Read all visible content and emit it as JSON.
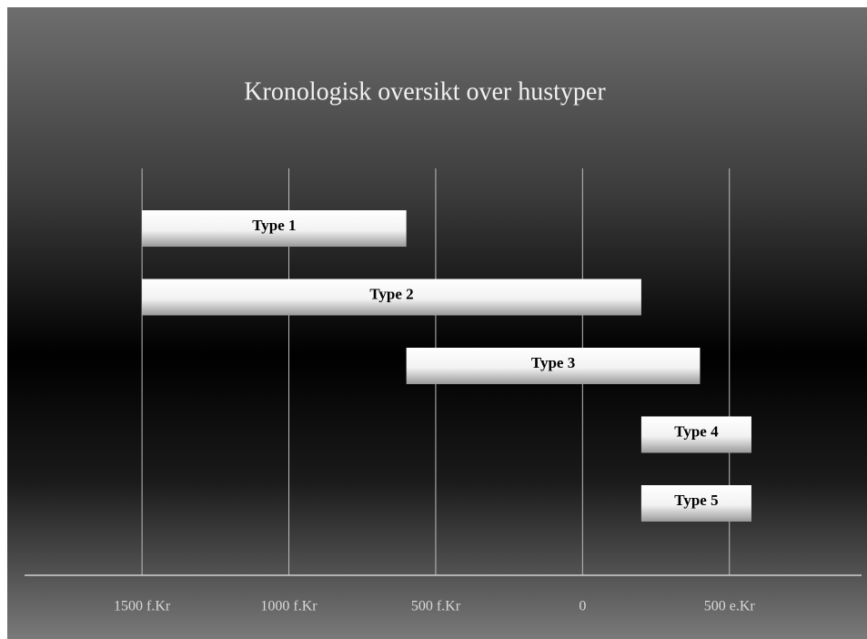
{
  "chart_data": {
    "type": "range_bar",
    "title": "Kronologisk oversikt over hustyper",
    "categories": [
      "Type 1",
      "Type 2",
      "Type 3",
      "Type 4",
      "Type 5"
    ],
    "start": [
      -1500,
      -1500,
      -600,
      200,
      200
    ],
    "end": [
      -600,
      200,
      400,
      575,
      575
    ],
    "xlim": [
      -1900,
      950
    ],
    "xticks": [
      {
        "value": -1500,
        "label": "1500 f.Kr"
      },
      {
        "value": -1000,
        "label": "1000 f.Kr"
      },
      {
        "value": -500,
        "label": "500 f.Kr"
      },
      0,
      {
        "value": 500,
        "label": "500 e.Kr"
      }
    ],
    "grid": true
  }
}
